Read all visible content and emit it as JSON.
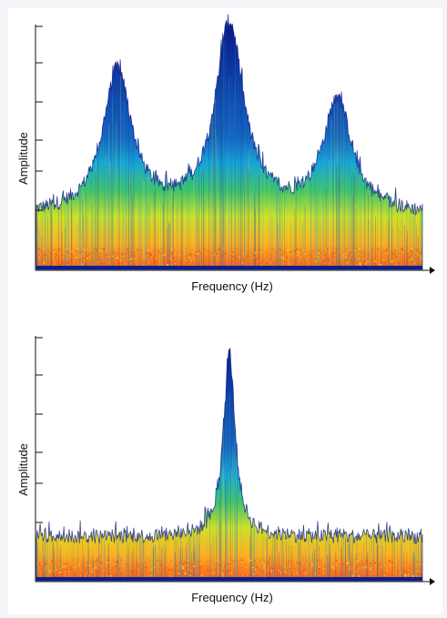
{
  "chart_data": [
    {
      "type": "area",
      "title": "",
      "xlabel": "Frequency (Hz)",
      "ylabel": "Amplitude",
      "x_ticks": [],
      "y_ticks": [],
      "grid": false,
      "legend": "none",
      "series": [
        {
          "peaks": [
            {
              "x": 0.21,
              "amplitude": 0.81
            },
            {
              "x": 0.5,
              "amplitude": 1.0
            },
            {
              "x": 0.78,
              "amplitude": 0.69
            }
          ],
          "noise_floor": 0.22
        }
      ],
      "colormap": [
        "#0a1a8c",
        "#1565c0",
        "#18a6d6",
        "#3fc46a",
        "#cfe02a",
        "#ffb01f",
        "#ff5a1a"
      ]
    },
    {
      "type": "area",
      "title": "",
      "xlabel": "Frequency (Hz)",
      "ylabel": "Amplitude",
      "x_ticks": [],
      "y_ticks": [],
      "grid": false,
      "legend": "none",
      "series": [
        {
          "peaks": [
            {
              "x": 0.5,
              "amplitude": 0.94
            }
          ],
          "noise_floor": 0.18
        }
      ],
      "colormap": [
        "#0a1a8c",
        "#1565c0",
        "#18a6d6",
        "#3fc46a",
        "#cfe02a",
        "#ffb01f",
        "#ff5a1a"
      ]
    }
  ]
}
